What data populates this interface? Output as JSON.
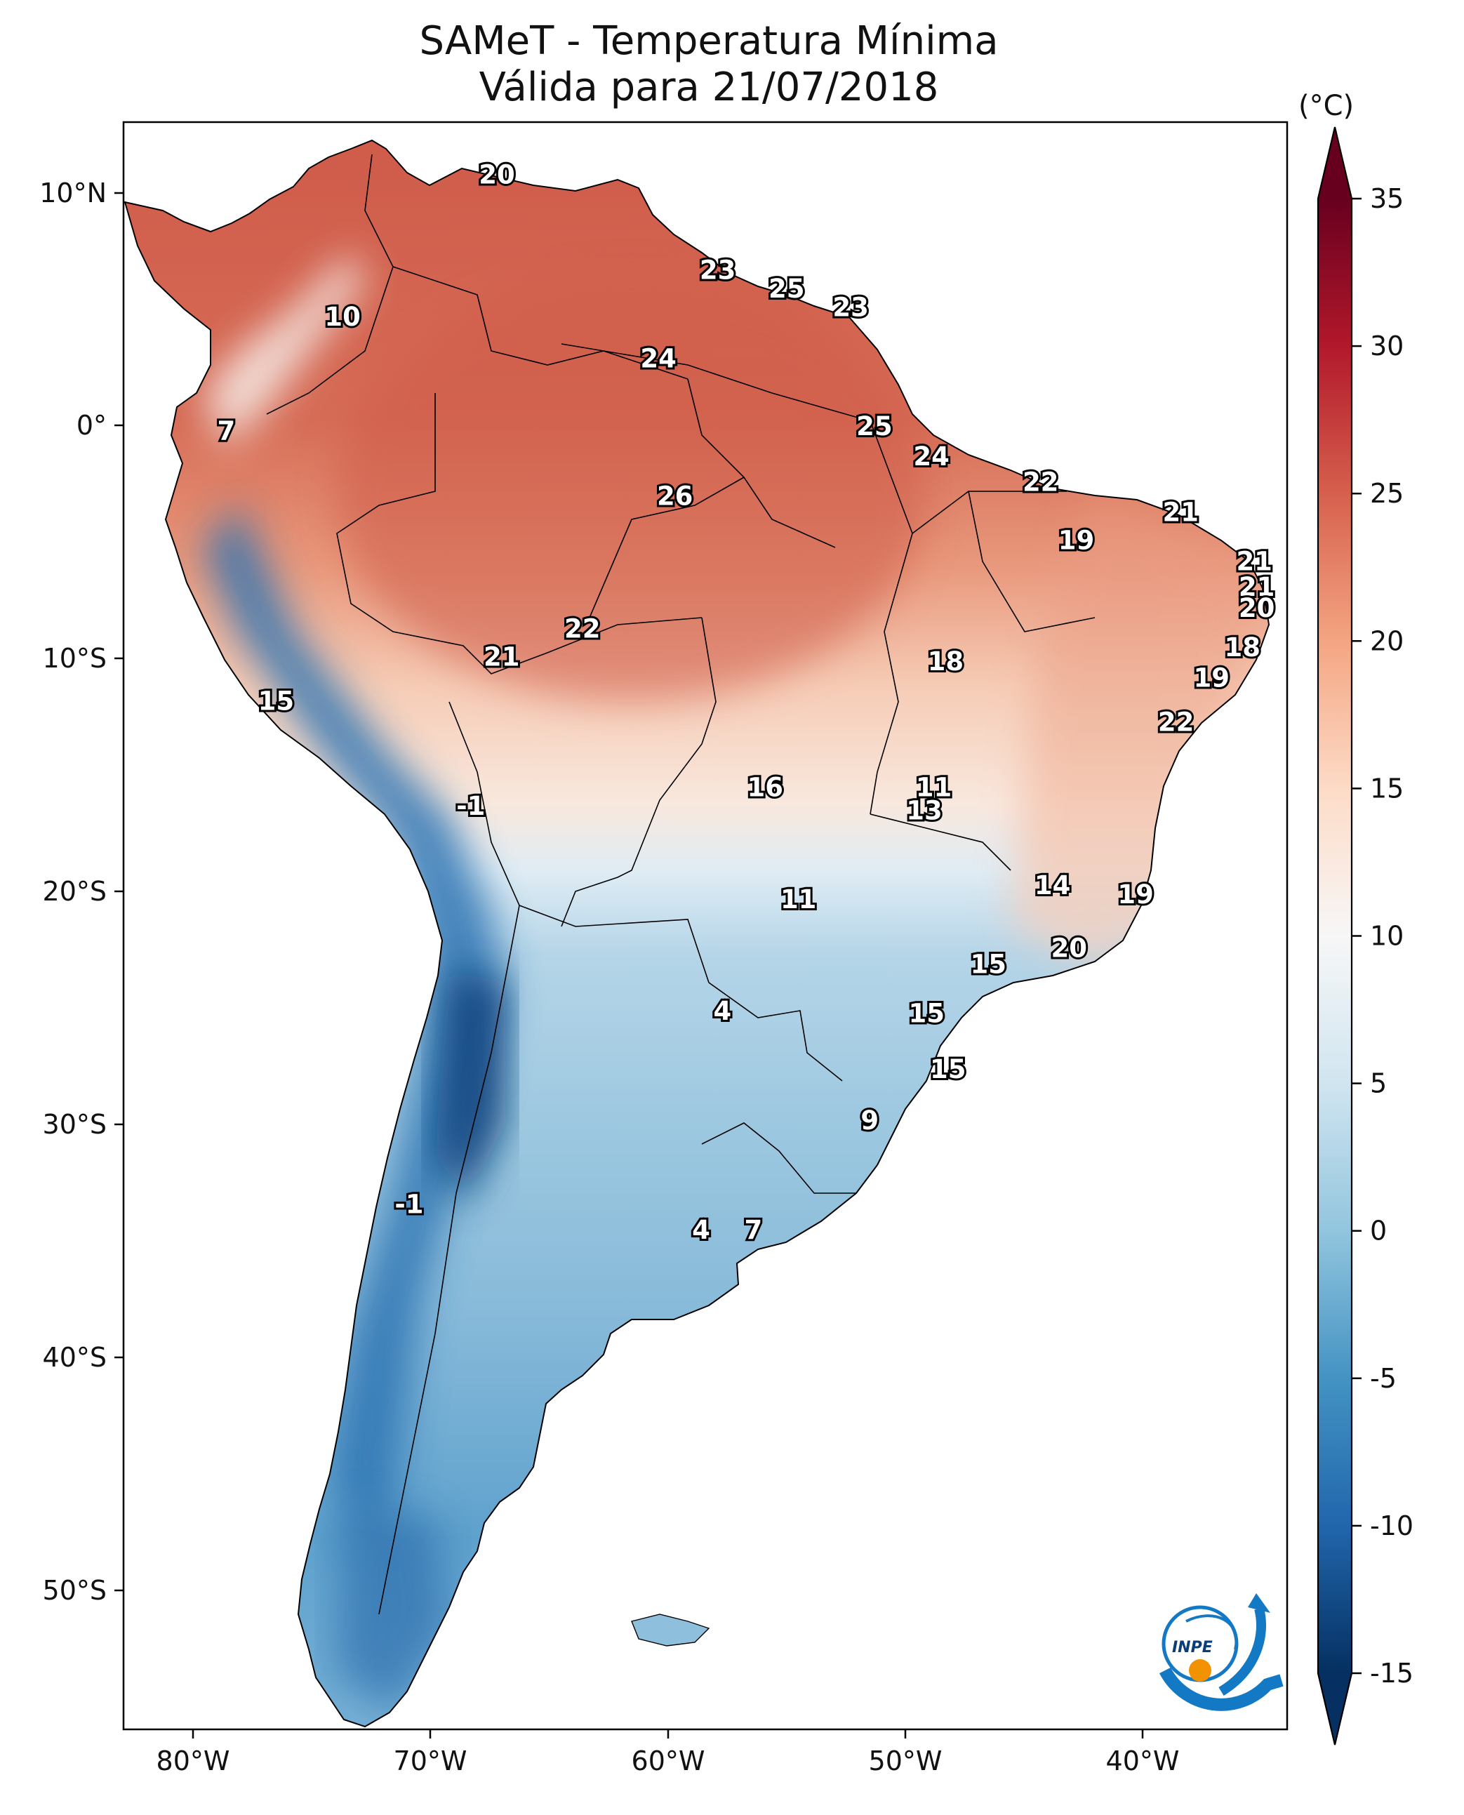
{
  "title": {
    "line1": "SAMeT - Temperatura Mínima",
    "line2": "Válida para 21/07/2018"
  },
  "colorbar": {
    "unit": "(°C)",
    "ticks": [
      "35",
      "30",
      "25",
      "20",
      "15",
      "10",
      "5",
      "0",
      "-5",
      "-10",
      "-15"
    ],
    "tick_values": [
      35,
      30,
      25,
      20,
      15,
      10,
      5,
      0,
      -5,
      -10,
      -15
    ],
    "min": -15,
    "max": 35,
    "colormap": "RdBu_r",
    "colors": [
      "#053061",
      "#2166ac",
      "#4393c3",
      "#92c5de",
      "#d1e5f0",
      "#f7f7f7",
      "#fddbc7",
      "#f4a582",
      "#d6604d",
      "#b2182b",
      "#67001f"
    ]
  },
  "axes": {
    "lon_ticks": [
      "80°W",
      "70°W",
      "60°W",
      "50°W",
      "40°W"
    ],
    "lon_values": [
      -80,
      -70,
      -60,
      -50,
      -40
    ],
    "lat_ticks": [
      "10°N",
      "0°",
      "10°S",
      "20°S",
      "30°S",
      "40°S",
      "50°S"
    ],
    "lat_values": [
      10,
      0,
      -10,
      -20,
      -30,
      -40,
      -50
    ],
    "lon_range": [
      -83,
      -34
    ],
    "lat_range": [
      -56,
      13
    ]
  },
  "value_labels": [
    {
      "text": "20",
      "lon": -67.2,
      "lat": 10.7
    },
    {
      "text": "10",
      "lon": -73.7,
      "lat": 4.6
    },
    {
      "text": "23",
      "lon": -57.9,
      "lat": 6.6
    },
    {
      "text": "25",
      "lon": -55.0,
      "lat": 5.8
    },
    {
      "text": "23",
      "lon": -52.3,
      "lat": 5.0
    },
    {
      "text": "24",
      "lon": -60.4,
      "lat": 2.8
    },
    {
      "text": "7",
      "lon": -78.6,
      "lat": -0.3
    },
    {
      "text": "25",
      "lon": -51.3,
      "lat": -0.1
    },
    {
      "text": "24",
      "lon": -48.9,
      "lat": -1.4
    },
    {
      "text": "26",
      "lon": -59.7,
      "lat": -3.1
    },
    {
      "text": "22",
      "lon": -44.3,
      "lat": -2.5
    },
    {
      "text": "21",
      "lon": -38.4,
      "lat": -3.8
    },
    {
      "text": "19",
      "lon": -42.8,
      "lat": -5.0
    },
    {
      "text": "21",
      "lon": -35.3,
      "lat": -5.9
    },
    {
      "text": "21",
      "lon": -35.2,
      "lat": -7.0
    },
    {
      "text": "20",
      "lon": -35.2,
      "lat": -7.9
    },
    {
      "text": "22",
      "lon": -63.6,
      "lat": -8.8
    },
    {
      "text": "21",
      "lon": -67.0,
      "lat": -10.0
    },
    {
      "text": "18",
      "lon": -48.3,
      "lat": -10.2
    },
    {
      "text": "18",
      "lon": -35.8,
      "lat": -9.6
    },
    {
      "text": "19",
      "lon": -37.1,
      "lat": -10.9
    },
    {
      "text": "15",
      "lon": -76.5,
      "lat": -11.9
    },
    {
      "text": "22",
      "lon": -38.6,
      "lat": -12.8
    },
    {
      "text": "16",
      "lon": -55.9,
      "lat": -15.6
    },
    {
      "text": "11",
      "lon": -48.8,
      "lat": -15.6
    },
    {
      "text": "13",
      "lon": -49.2,
      "lat": -16.6
    },
    {
      "text": "-1",
      "lon": -68.3,
      "lat": -16.4
    },
    {
      "text": "11",
      "lon": -54.5,
      "lat": -20.4
    },
    {
      "text": "14",
      "lon": -43.8,
      "lat": -19.8
    },
    {
      "text": "19",
      "lon": -40.3,
      "lat": -20.2
    },
    {
      "text": "20",
      "lon": -43.1,
      "lat": -22.5
    },
    {
      "text": "15",
      "lon": -46.5,
      "lat": -23.2
    },
    {
      "text": "4",
      "lon": -57.7,
      "lat": -25.2
    },
    {
      "text": "15",
      "lon": -49.1,
      "lat": -25.3
    },
    {
      "text": "15",
      "lon": -48.2,
      "lat": -27.7
    },
    {
      "text": "9",
      "lon": -51.5,
      "lat": -29.9
    },
    {
      "text": "-1",
      "lon": -70.9,
      "lat": -33.5
    },
    {
      "text": "4",
      "lon": -58.6,
      "lat": -34.6
    },
    {
      "text": "7",
      "lon": -56.4,
      "lat": -34.6
    }
  ],
  "logo": {
    "text": "INPE",
    "primary_color": "#1479c4",
    "accent_color": "#f39200"
  }
}
